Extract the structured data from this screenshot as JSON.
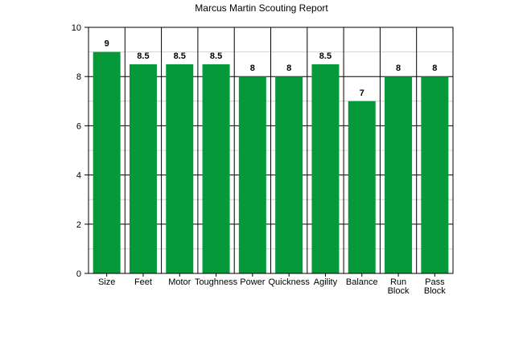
{
  "chart_data": {
    "type": "bar",
    "title": "Marcus Martin Scouting Report",
    "categories": [
      "Size",
      "Feet",
      "Motor",
      "Toughness",
      "Power",
      "Quickness",
      "Agility",
      "Balance",
      "Run Block",
      "Pass Block"
    ],
    "values": [
      9,
      8.5,
      8.5,
      8.5,
      8,
      8,
      8.5,
      7,
      8,
      8
    ],
    "data_labels": [
      "9",
      "8.5",
      "8.5",
      "8.5",
      "8",
      "8",
      "8.5",
      "7",
      "8",
      "8"
    ],
    "xlabel": "",
    "ylabel": "",
    "ylim": [
      0,
      10
    ],
    "yticks": [
      0,
      2,
      4,
      6,
      8,
      10
    ],
    "grid": true,
    "legend": "none",
    "bar_color": "#05993a"
  }
}
